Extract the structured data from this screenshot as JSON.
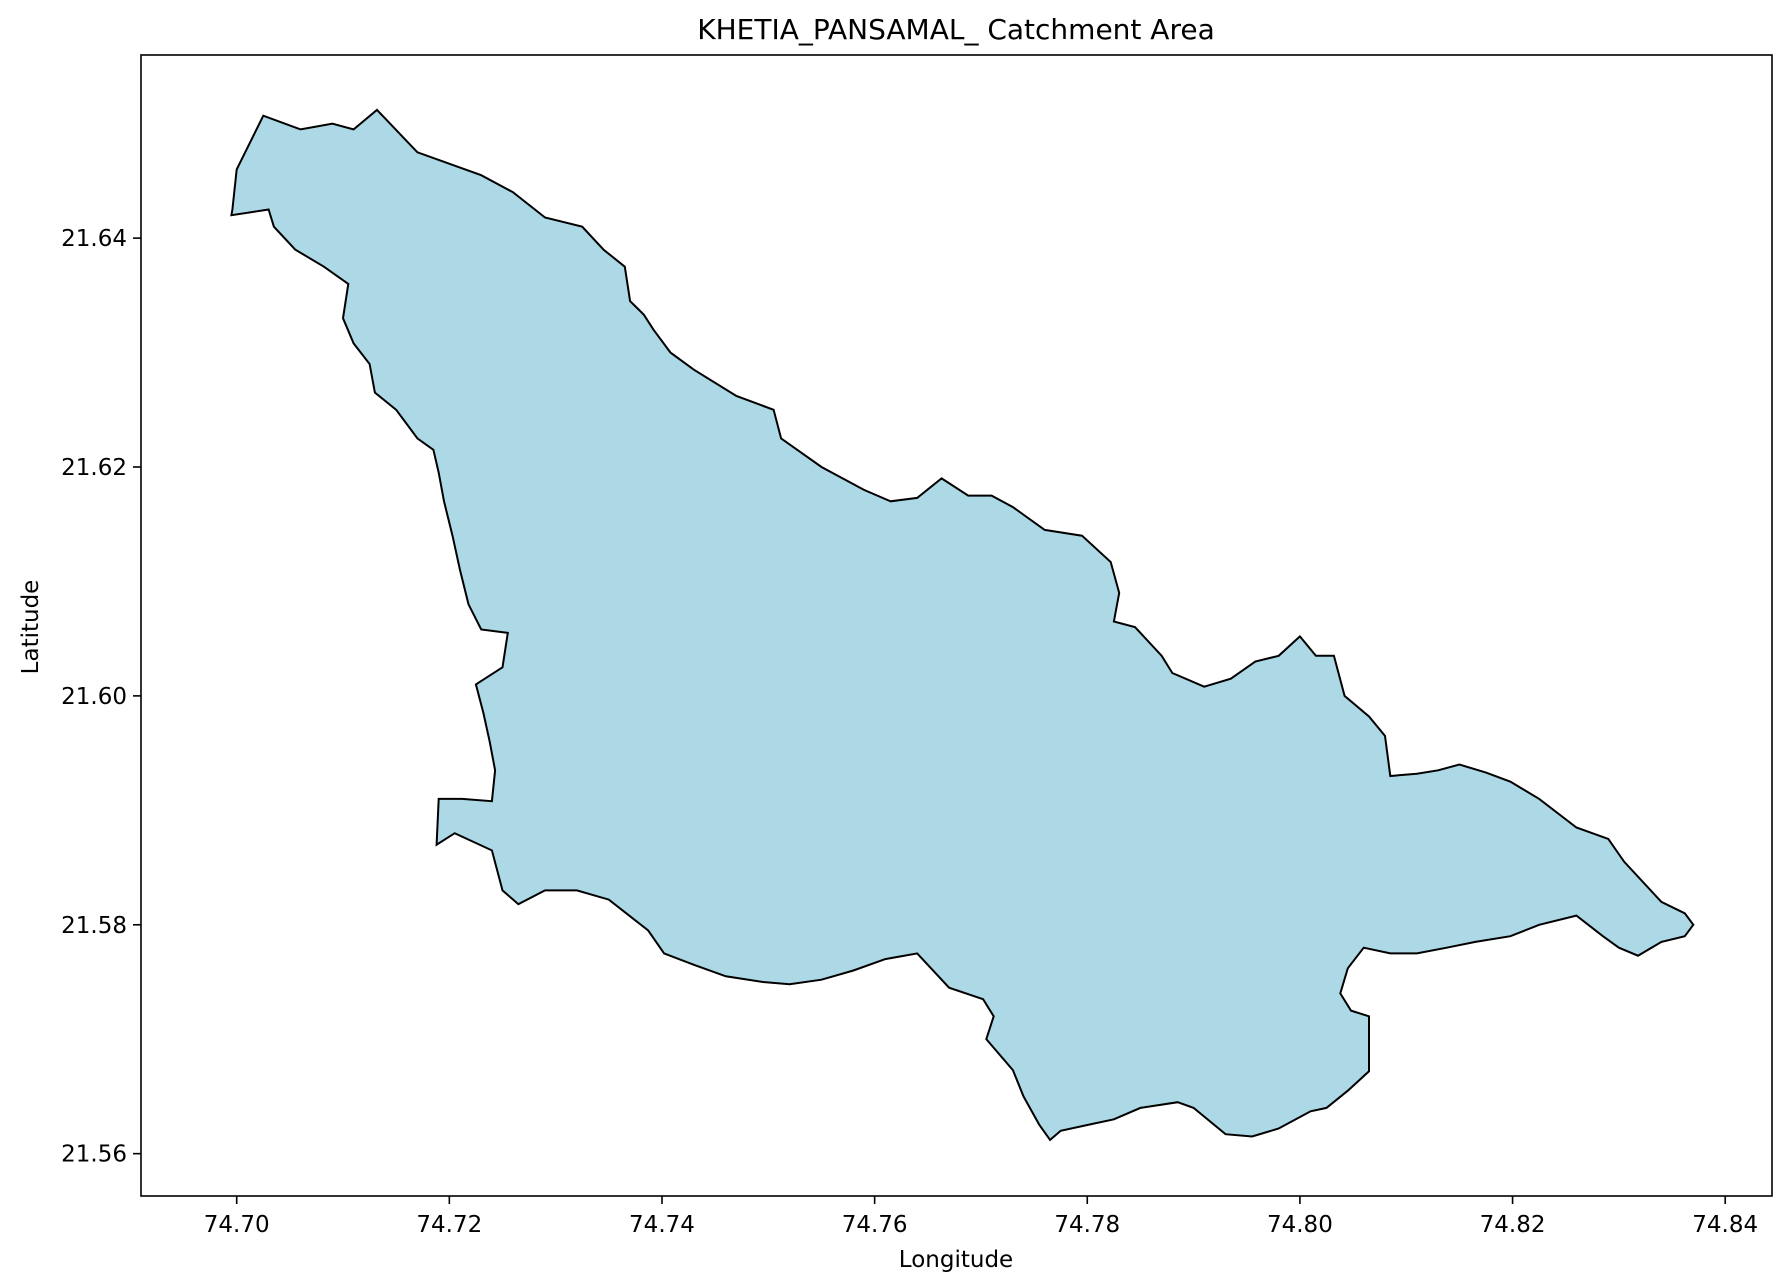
{
  "title": "KHETIA_PANSAMAL_ Catchment Area",
  "xlabel": "Longitude",
  "ylabel": "Latitude",
  "colors": {
    "fill": "#add8e6",
    "edge": "#000000",
    "axes": "#000000",
    "background": "#ffffff"
  },
  "chart_data": {
    "type": "map",
    "title": "KHETIA_PANSAMAL_ Catchment Area",
    "xlabel": "Longitude",
    "ylabel": "Latitude",
    "xlim": [
      74.691,
      74.8444
    ],
    "ylim": [
      21.5563,
      21.656
    ],
    "xticks": [
      "74.70",
      "74.72",
      "74.74",
      "74.76",
      "74.78",
      "74.80",
      "74.82",
      "74.84"
    ],
    "yticks": [
      "21.56",
      "21.58",
      "21.60",
      "21.62",
      "21.64"
    ],
    "grid": false,
    "boundary": [
      [
        74.6996,
        21.6425
      ],
      [
        74.7,
        21.646
      ],
      [
        74.7025,
        21.6507
      ],
      [
        74.706,
        21.6495
      ],
      [
        74.709,
        21.65
      ],
      [
        74.711,
        21.6495
      ],
      [
        74.7132,
        21.6512
      ],
      [
        74.717,
        21.6475
      ],
      [
        74.723,
        21.6455
      ],
      [
        74.726,
        21.644
      ],
      [
        74.729,
        21.6418
      ],
      [
        74.7325,
        21.641
      ],
      [
        74.7345,
        21.639
      ],
      [
        74.7365,
        21.6375
      ],
      [
        74.737,
        21.6345
      ],
      [
        74.7383,
        21.6333
      ],
      [
        74.7392,
        21.632
      ],
      [
        74.7408,
        21.63
      ],
      [
        74.743,
        21.6285
      ],
      [
        74.747,
        21.6262
      ],
      [
        74.7505,
        21.625
      ],
      [
        74.7512,
        21.6225
      ],
      [
        74.755,
        21.62
      ],
      [
        74.759,
        21.618
      ],
      [
        74.7615,
        21.617
      ],
      [
        74.764,
        21.6173
      ],
      [
        74.7663,
        21.619
      ],
      [
        74.7688,
        21.6175
      ],
      [
        74.771,
        21.6175
      ],
      [
        74.773,
        21.6165
      ],
      [
        74.776,
        21.6145
      ],
      [
        74.7795,
        21.614
      ],
      [
        74.7822,
        21.6117
      ],
      [
        74.783,
        21.609
      ],
      [
        74.7825,
        21.6065
      ],
      [
        74.7845,
        21.606
      ],
      [
        74.787,
        21.6035
      ],
      [
        74.788,
        21.602
      ],
      [
        74.791,
        21.6008
      ],
      [
        74.7935,
        21.6015
      ],
      [
        74.7958,
        21.603
      ],
      [
        74.798,
        21.6035
      ],
      [
        74.8,
        21.6052
      ],
      [
        74.8015,
        21.6035
      ],
      [
        74.8032,
        21.6035
      ],
      [
        74.8042,
        21.6
      ],
      [
        74.8065,
        21.5982
      ],
      [
        74.808,
        21.5965
      ],
      [
        74.8085,
        21.593
      ],
      [
        74.811,
        21.5932
      ],
      [
        74.813,
        21.5935
      ],
      [
        74.815,
        21.594
      ],
      [
        74.8175,
        21.5933
      ],
      [
        74.8198,
        21.5925
      ],
      [
        74.8225,
        21.591
      ],
      [
        74.826,
        21.5885
      ],
      [
        74.829,
        21.5875
      ],
      [
        74.8305,
        21.5855
      ],
      [
        74.834,
        21.582
      ],
      [
        74.8362,
        21.581
      ],
      [
        74.837,
        21.58
      ],
      [
        74.8362,
        21.579
      ],
      [
        74.834,
        21.5785
      ],
      [
        74.8318,
        21.5773
      ],
      [
        74.83,
        21.578
      ],
      [
        74.8285,
        21.579
      ],
      [
        74.826,
        21.5808
      ],
      [
        74.8225,
        21.58
      ],
      [
        74.8198,
        21.579
      ],
      [
        74.8165,
        21.5785
      ],
      [
        74.8138,
        21.578
      ],
      [
        74.811,
        21.5775
      ],
      [
        74.8085,
        21.5775
      ],
      [
        74.806,
        21.578
      ],
      [
        74.8045,
        21.5762
      ],
      [
        74.8038,
        21.574
      ],
      [
        74.8048,
        21.5725
      ],
      [
        74.8065,
        21.572
      ],
      [
        74.8065,
        21.57
      ],
      [
        74.8065,
        21.5672
      ],
      [
        74.8045,
        21.5655
      ],
      [
        74.8025,
        21.564
      ],
      [
        74.801,
        21.5637
      ],
      [
        74.798,
        21.5622
      ],
      [
        74.7955,
        21.5615
      ],
      [
        74.793,
        21.5617
      ],
      [
        74.79,
        21.564
      ],
      [
        74.7885,
        21.5645
      ],
      [
        74.785,
        21.564
      ],
      [
        74.7825,
        21.563
      ],
      [
        74.78,
        21.5625
      ],
      [
        74.7775,
        21.562
      ],
      [
        74.7765,
        21.5612
      ],
      [
        74.7755,
        21.5625
      ],
      [
        74.774,
        21.565
      ],
      [
        74.773,
        21.5673
      ],
      [
        74.7705,
        21.57
      ],
      [
        74.7712,
        21.572
      ],
      [
        74.7702,
        21.5735
      ],
      [
        74.767,
        21.5745
      ],
      [
        74.764,
        21.5775
      ],
      [
        74.761,
        21.577
      ],
      [
        74.758,
        21.576
      ],
      [
        74.755,
        21.5752
      ],
      [
        74.752,
        21.5748
      ],
      [
        74.7495,
        21.575
      ],
      [
        74.746,
        21.5755
      ],
      [
        74.743,
        21.5765
      ],
      [
        74.7402,
        21.5775
      ],
      [
        74.7387,
        21.5795
      ],
      [
        74.735,
        21.5822
      ],
      [
        74.732,
        21.583
      ],
      [
        74.729,
        21.583
      ],
      [
        74.7265,
        21.5818
      ],
      [
        74.725,
        21.583
      ],
      [
        74.724,
        21.5865
      ],
      [
        74.7205,
        21.588
      ],
      [
        74.7188,
        21.587
      ],
      [
        74.719,
        21.591
      ],
      [
        74.7212,
        21.591
      ],
      [
        74.724,
        21.5908
      ],
      [
        74.7243,
        21.5935
      ],
      [
        74.7238,
        21.596
      ],
      [
        74.7232,
        21.5985
      ],
      [
        74.7225,
        21.601
      ],
      [
        74.725,
        21.6025
      ],
      [
        74.7255,
        21.6055
      ],
      [
        74.723,
        21.6058
      ],
      [
        74.7218,
        21.608
      ],
      [
        74.721,
        21.611
      ],
      [
        74.7203,
        21.614
      ],
      [
        74.7195,
        21.617
      ],
      [
        74.719,
        21.6195
      ],
      [
        74.7185,
        21.6215
      ],
      [
        74.717,
        21.6225
      ],
      [
        74.715,
        21.625
      ],
      [
        74.713,
        21.6265
      ],
      [
        74.7125,
        21.629
      ],
      [
        74.711,
        21.6308
      ],
      [
        74.71,
        21.633
      ],
      [
        74.7105,
        21.636
      ],
      [
        74.7082,
        21.6375
      ],
      [
        74.7055,
        21.639
      ],
      [
        74.7035,
        21.641
      ],
      [
        74.703,
        21.6425
      ],
      [
        74.6995,
        21.642
      ]
    ]
  }
}
